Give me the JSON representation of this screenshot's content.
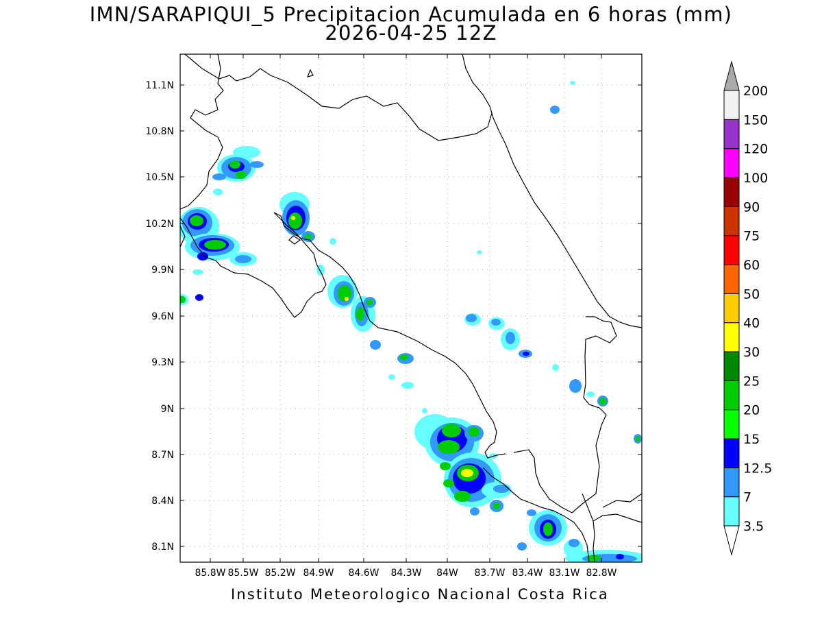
{
  "title": {
    "line1": "IMN/SARAPIQUI_5 Precipitacion Acumulada en 6 horas (mm)",
    "line2": "2026-04-25 12Z"
  },
  "footer": "Instituto Meteorologico Nacional Costa Rica",
  "map": {
    "lon_range": [
      -86.0,
      -82.6
    ],
    "lat_range": [
      8.0,
      11.3
    ],
    "lat_ticks": [
      "11.1N",
      "10.8N",
      "10.5N",
      "10.2N",
      "9.9N",
      "9.6N",
      "9.3N",
      "9N",
      "8.7N",
      "8.4N",
      "8.1N"
    ],
    "lon_ticks": [
      "85.8W",
      "85.5W",
      "85.2W",
      "84.9W",
      "84.6W",
      "84.3W",
      "84W",
      "83.7W",
      "83.4W",
      "83.1W",
      "82.8W"
    ],
    "grid": true
  },
  "legend": {
    "levels": [
      {
        "label": "3.5",
        "color": "#66ffff"
      },
      {
        "label": "7",
        "color": "#3399ff"
      },
      {
        "label": "12.5",
        "color": "#0000ff"
      },
      {
        "label": "15",
        "color": "#00ff00"
      },
      {
        "label": "20",
        "color": "#00cc00"
      },
      {
        "label": "25",
        "color": "#008800"
      },
      {
        "label": "30",
        "color": "#ffff00"
      },
      {
        "label": "40",
        "color": "#ffcc00"
      },
      {
        "label": "50",
        "color": "#ff6600"
      },
      {
        "label": "60",
        "color": "#ff0000"
      },
      {
        "label": "75",
        "color": "#cc3300"
      },
      {
        "label": "90",
        "color": "#990000"
      },
      {
        "label": "100",
        "color": "#ff00ff"
      },
      {
        "label": "120",
        "color": "#9933cc"
      },
      {
        "label": "150",
        "color": "#f2f2f2"
      },
      {
        "label": "200",
        "color": "#aaaaaa"
      }
    ],
    "extend": "both"
  }
}
